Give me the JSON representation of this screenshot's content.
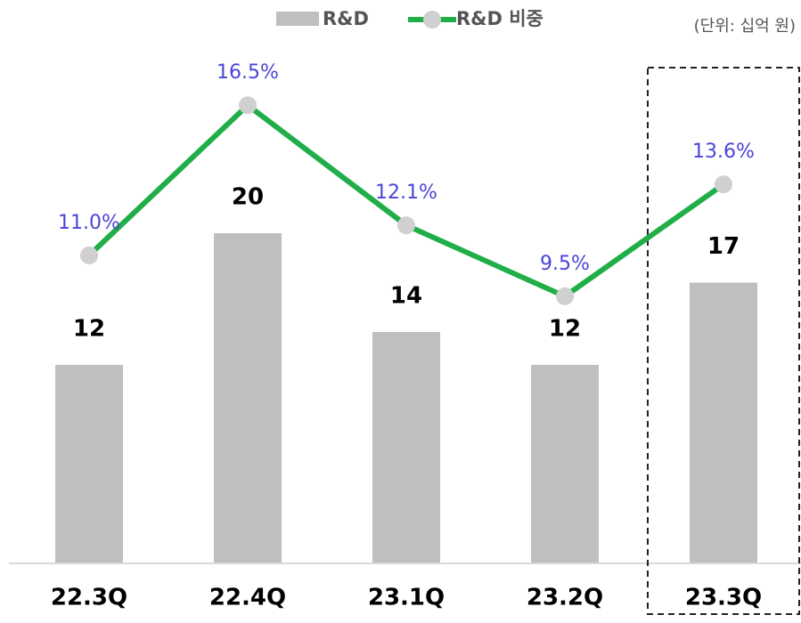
{
  "chart_data": {
    "type": "bar_line",
    "note": "(단위: 십억 원)",
    "categories": [
      "22.3Q",
      "22.4Q",
      "23.1Q",
      "23.2Q",
      "23.3Q"
    ],
    "series": [
      {
        "name": "R&D",
        "type": "bar",
        "color": "#bfbfbf",
        "values": [
          12,
          20,
          14,
          12,
          17
        ]
      },
      {
        "name": "R&D 비중",
        "type": "line",
        "axis": "y2",
        "color": "#1fae48",
        "marker_color": "#d0d0d0",
        "values": [
          11.0,
          16.5,
          12.1,
          9.5,
          13.6
        ],
        "value_labels": [
          "11.0%",
          "16.5%",
          "12.1%",
          "9.5%",
          "13.6%"
        ]
      }
    ],
    "ylim": [
      0,
      32
    ],
    "y2lim": [
      -0.25,
      19.05
    ]
  }
}
